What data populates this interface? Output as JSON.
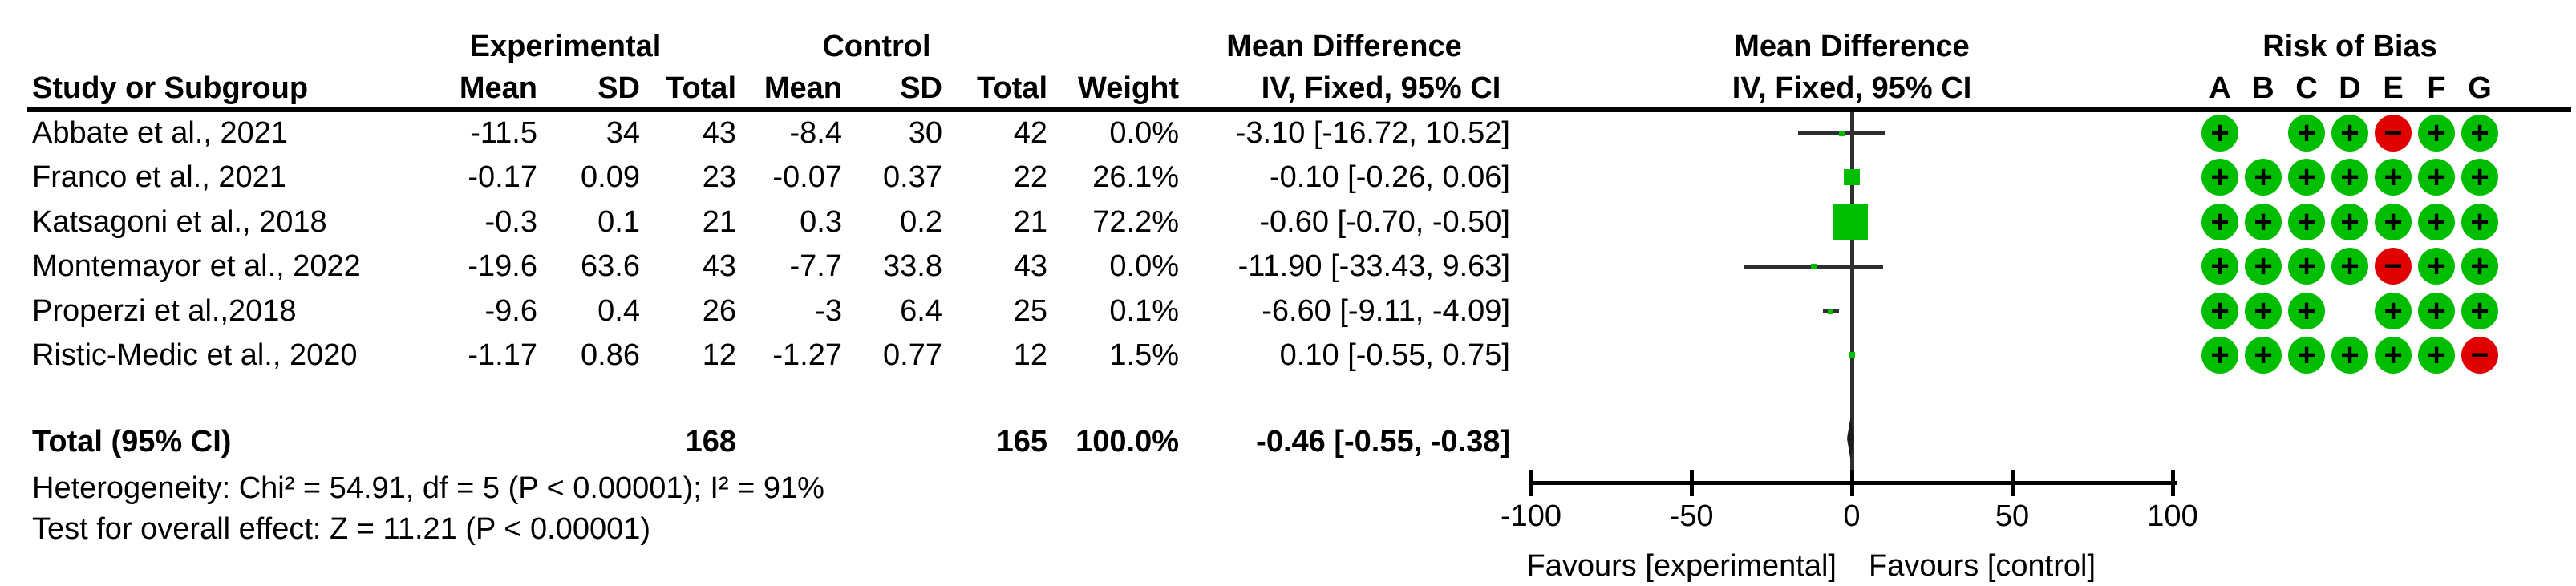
{
  "header": {
    "study": "Study or Subgroup",
    "experimental": "Experimental",
    "control": "Control",
    "mean": "Mean",
    "sd": "SD",
    "total": "Total",
    "weight": "Weight",
    "mean_difference": "Mean Difference",
    "iv_fixed": "IV, Fixed, 95% CI",
    "risk_of_bias": "Risk of Bias",
    "rob_letters": [
      "A",
      "B",
      "C",
      "D",
      "E",
      "F",
      "G"
    ]
  },
  "colors": {
    "marker_green": "#00BD00",
    "rob_low_risk_green": "#00BD00",
    "rob_high_risk_red": "#E00000",
    "line_dark": "#2F2F2F"
  },
  "chart_data": {
    "type": "forest",
    "effect_measure": "Mean Difference",
    "method": "IV, Fixed, 95% CI",
    "studies": [
      {
        "name": "Abbate et al., 2021",
        "exp_mean": "-11.5",
        "exp_sd": "34",
        "exp_total": "43",
        "ctl_mean": "-8.4",
        "ctl_sd": "30",
        "ctl_total": "42",
        "weight_label": "0.0%",
        "weight_pct": 0.0,
        "md": -3.1,
        "ci_low": -16.72,
        "ci_high": 10.52,
        "ci_label": "-3.10 [-16.72, 10.52]",
        "rob": [
          "+",
          "",
          "+",
          "+",
          "-",
          "+",
          "+"
        ]
      },
      {
        "name": "Franco et al., 2021",
        "exp_mean": "-0.17",
        "exp_sd": "0.09",
        "exp_total": "23",
        "ctl_mean": "-0.07",
        "ctl_sd": "0.37",
        "ctl_total": "22",
        "weight_label": "26.1%",
        "weight_pct": 26.1,
        "md": -0.1,
        "ci_low": -0.26,
        "ci_high": 0.06,
        "ci_label": "-0.10 [-0.26, 0.06]",
        "rob": [
          "+",
          "+",
          "+",
          "+",
          "+",
          "+",
          "+"
        ]
      },
      {
        "name": "Katsagoni et al., 2018",
        "exp_mean": "-0.3",
        "exp_sd": "0.1",
        "exp_total": "21",
        "ctl_mean": "0.3",
        "ctl_sd": "0.2",
        "ctl_total": "21",
        "weight_label": "72.2%",
        "weight_pct": 72.2,
        "md": -0.6,
        "ci_low": -0.7,
        "ci_high": -0.5,
        "ci_label": "-0.60 [-0.70, -0.50]",
        "rob": [
          "+",
          "+",
          "+",
          "+",
          "+",
          "+",
          "+"
        ]
      },
      {
        "name": "Montemayor et al., 2022",
        "exp_mean": "-19.6",
        "exp_sd": "63.6",
        "exp_total": "43",
        "ctl_mean": "-7.7",
        "ctl_sd": "33.8",
        "ctl_total": "43",
        "weight_label": "0.0%",
        "weight_pct": 0.0,
        "md": -11.9,
        "ci_low": -33.43,
        "ci_high": 9.63,
        "ci_label": "-11.90 [-33.43, 9.63]",
        "rob": [
          "+",
          "+",
          "+",
          "+",
          "-",
          "+",
          "+"
        ]
      },
      {
        "name": "Properzi et al.,2018",
        "exp_mean": "-9.6",
        "exp_sd": "0.4",
        "exp_total": "26",
        "ctl_mean": "-3",
        "ctl_sd": "6.4",
        "ctl_total": "25",
        "weight_label": "0.1%",
        "weight_pct": 0.1,
        "md": -6.6,
        "ci_low": -9.11,
        "ci_high": -4.09,
        "ci_label": "-6.60 [-9.11, -4.09]",
        "rob": [
          "+",
          "+",
          "+",
          "",
          "+",
          "+",
          "+"
        ]
      },
      {
        "name": "Ristic-Medic et al., 2020",
        "exp_mean": "-1.17",
        "exp_sd": "0.86",
        "exp_total": "12",
        "ctl_mean": "-1.27",
        "ctl_sd": "0.77",
        "ctl_total": "12",
        "weight_label": "1.5%",
        "weight_pct": 1.5,
        "md": 0.1,
        "ci_low": -0.55,
        "ci_high": 0.75,
        "ci_label": "0.10 [-0.55, 0.75]",
        "rob": [
          "+",
          "+",
          "+",
          "+",
          "+",
          "+",
          "-"
        ]
      }
    ],
    "total": {
      "label": "Total (95% CI)",
      "exp_total": "168",
      "ctl_total": "165",
      "weight_label": "100.0%",
      "md": -0.46,
      "ci_low": -0.55,
      "ci_high": -0.38,
      "ci_label": "-0.46 [-0.55, -0.38]"
    },
    "axis": {
      "min": -100,
      "max": 100,
      "ticks": [
        -100,
        -50,
        0,
        50,
        100
      ],
      "favours_left": "Favours [experimental]",
      "favours_right": "Favours [control]"
    },
    "heterogeneity": "Heterogeneity: Chi² = 54.91, df = 5 (P < 0.00001); I² = 91%",
    "overall_effect": "Test for overall effect: Z = 11.21 (P < 0.00001)"
  }
}
